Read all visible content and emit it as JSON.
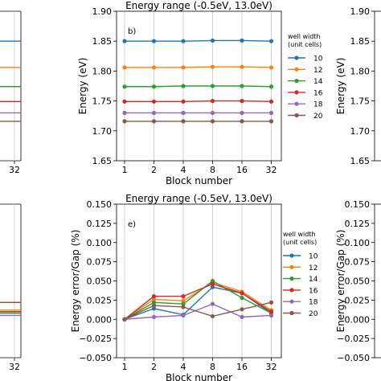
{
  "chart_data": [
    {
      "type": "line",
      "panel_label": "b)",
      "title": "Energy range (-0.5eV, 13.0eV)",
      "xlabel": "Block number",
      "ylabel": "Energy (eV)",
      "x": [
        "1",
        "2",
        "4",
        "8",
        "16",
        "32"
      ],
      "ylim": [
        1.65,
        1.9
      ],
      "yticks": [
        "1.65",
        "1.70",
        "1.75",
        "1.80",
        "1.85",
        "1.90"
      ],
      "grid": "vertical",
      "legend_title": [
        "well width",
        "(unit cells)"
      ],
      "legend_position": "right",
      "series": [
        {
          "name": "10",
          "color": "#1f77b4",
          "values": [
            1.85,
            1.85,
            1.85,
            1.851,
            1.851,
            1.85
          ]
        },
        {
          "name": "12",
          "color": "#ff7f0e",
          "values": [
            1.806,
            1.806,
            1.806,
            1.807,
            1.807,
            1.806
          ]
        },
        {
          "name": "14",
          "color": "#2ca02c",
          "values": [
            1.774,
            1.774,
            1.775,
            1.775,
            1.775,
            1.774
          ]
        },
        {
          "name": "16",
          "color": "#d62728",
          "values": [
            1.749,
            1.749,
            1.749,
            1.75,
            1.75,
            1.749
          ]
        },
        {
          "name": "18",
          "color": "#9467bd",
          "values": [
            1.73,
            1.73,
            1.73,
            1.73,
            1.73,
            1.73
          ]
        },
        {
          "name": "20",
          "color": "#8c564b",
          "values": [
            1.716,
            1.716,
            1.716,
            1.716,
            1.716,
            1.716
          ]
        }
      ]
    },
    {
      "type": "line",
      "panel_label": "e)",
      "title": "Energy range (-0.5eV, 13.0eV)",
      "xlabel": "Block number",
      "ylabel": "Energy error/Gap (%)",
      "x": [
        "1",
        "2",
        "4",
        "8",
        "16",
        "32"
      ],
      "ylim": [
        -0.05,
        0.15
      ],
      "yticks": [
        "−0.050",
        "−0.025",
        "0.000",
        "0.025",
        "0.050",
        "0.075",
        "0.100",
        "0.125",
        "0.150"
      ],
      "grid": "vertical",
      "legend_title": [
        "well width",
        "(unit cells)"
      ],
      "legend_position": "right",
      "series": [
        {
          "name": "10",
          "color": "#1f77b4",
          "values": [
            0.0,
            0.014,
            0.006,
            0.042,
            0.034,
            0.008
          ]
        },
        {
          "name": "12",
          "color": "#ff7f0e",
          "values": [
            0.0,
            0.026,
            0.024,
            0.048,
            0.036,
            0.012
          ]
        },
        {
          "name": "14",
          "color": "#2ca02c",
          "values": [
            0.0,
            0.022,
            0.02,
            0.05,
            0.028,
            0.008
          ]
        },
        {
          "name": "16",
          "color": "#d62728",
          "values": [
            0.0,
            0.03,
            0.03,
            0.046,
            0.034,
            0.01
          ]
        },
        {
          "name": "18",
          "color": "#9467bd",
          "values": [
            0.0,
            0.003,
            0.005,
            0.02,
            0.003,
            0.005
          ]
        },
        {
          "name": "20",
          "color": "#8c564b",
          "values": [
            0.0,
            0.018,
            0.016,
            0.004,
            0.013,
            0.022
          ]
        }
      ]
    },
    {
      "type": "line",
      "panel_label": "",
      "title": "",
      "xlabel": "",
      "ylabel": "Energy (eV)",
      "x": [
        "32"
      ],
      "ylim": [
        1.65,
        1.9
      ],
      "yticks": [
        "1.65",
        "1.70",
        "1.75",
        "1.80",
        "1.85",
        "1.90"
      ],
      "grid": "vertical",
      "legend_title": [
        "well width",
        "(unit cells)"
      ],
      "legend_position": "right",
      "series": [
        {
          "name": "10",
          "color": "#1f77b4",
          "values": [
            1.85
          ]
        },
        {
          "name": "12",
          "color": "#ff7f0e",
          "values": [
            1.806
          ]
        },
        {
          "name": "14",
          "color": "#2ca02c",
          "values": [
            1.774
          ]
        },
        {
          "name": "16",
          "color": "#d62728",
          "values": [
            1.749
          ]
        },
        {
          "name": "18",
          "color": "#9467bd",
          "values": [
            1.73
          ]
        },
        {
          "name": "20",
          "color": "#8c564b",
          "values": [
            1.716
          ]
        }
      ]
    },
    {
      "type": "line",
      "panel_label": "",
      "title": "",
      "xlabel": "",
      "ylabel": "Energy error/Gap (%)",
      "x": [
        "32"
      ],
      "ylim": [
        -0.05,
        0.15
      ],
      "yticks": [
        "−0.050",
        "−0.025",
        "0.000",
        "0.025",
        "0.050",
        "0.075",
        "0.100",
        "0.125",
        "0.150"
      ],
      "grid": "vertical",
      "legend_title": [
        "well width",
        "(unit cells)"
      ],
      "legend_position": "right",
      "series": [
        {
          "name": "10",
          "color": "#1f77b4",
          "values": [
            0.008
          ]
        },
        {
          "name": "12",
          "color": "#ff7f0e",
          "values": [
            0.012
          ]
        },
        {
          "name": "14",
          "color": "#2ca02c",
          "values": [
            0.008
          ]
        },
        {
          "name": "16",
          "color": "#d62728",
          "values": [
            0.01
          ]
        },
        {
          "name": "18",
          "color": "#9467bd",
          "values": [
            0.005
          ]
        },
        {
          "name": "20",
          "color": "#8c564b",
          "values": [
            0.022
          ]
        }
      ]
    }
  ]
}
